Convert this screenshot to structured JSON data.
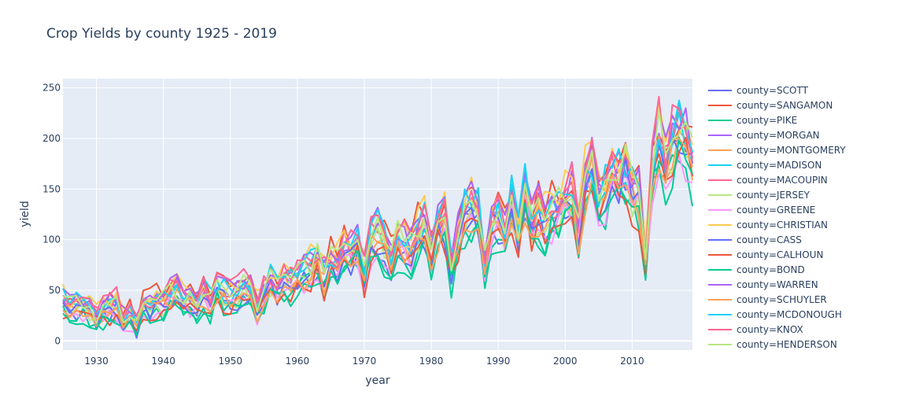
{
  "chart_data": {
    "type": "line",
    "title": "Crop Yields by county 1925 - 2019",
    "xlabel": "year",
    "ylabel": "yield",
    "xlim": [
      1925,
      2019
    ],
    "ylim": [
      -9,
      259
    ],
    "x_ticks": [
      1930,
      1940,
      1950,
      1960,
      1970,
      1980,
      1990,
      2000,
      2010
    ],
    "x_tick_labels": [
      "1930",
      "1940",
      "1950",
      "1960",
      "1970",
      "1980",
      "1990",
      "2000",
      "2010"
    ],
    "y_ticks": [
      0,
      50,
      100,
      150,
      200,
      250
    ],
    "y_tick_labels": [
      "0",
      "50",
      "100",
      "150",
      "200",
      "250"
    ],
    "grid": true,
    "legend_position": "right",
    "plot_bgcolor": "#E5ECF6",
    "x_start": 1925,
    "base_trend": [
      38,
      32,
      34,
      36,
      34,
      22,
      30,
      32,
      36,
      20,
      25,
      14,
      40,
      35,
      40,
      38,
      45,
      48,
      42,
      40,
      38,
      48,
      38,
      52,
      46,
      44,
      46,
      52,
      48,
      32,
      46,
      58,
      52,
      60,
      58,
      62,
      68,
      72,
      80,
      62,
      78,
      74,
      90,
      85,
      95,
      65,
      100,
      105,
      95,
      80,
      100,
      95,
      90,
      110,
      115,
      85,
      112,
      120,
      68,
      105,
      130,
      132,
      125,
      75,
      118,
      120,
      105,
      140,
      100,
      145,
      110,
      125,
      120,
      128,
      130,
      140,
      145,
      110,
      158,
      170,
      140,
      148,
      165,
      160,
      170,
      150,
      145,
      75,
      170,
      200,
      170,
      195,
      205,
      200,
      175
    ],
    "series": [
      {
        "name": "county=SCOTT",
        "color": "#636efa",
        "offset": -4,
        "scale": 0.95,
        "phase": 1
      },
      {
        "name": "county=SANGAMON",
        "color": "#EF553B",
        "offset": 6,
        "scale": 1.08,
        "phase": 2
      },
      {
        "name": "county=PIKE",
        "color": "#00cc96",
        "offset": -8,
        "scale": 0.9,
        "phase": 3
      },
      {
        "name": "county=MORGAN",
        "color": "#ab63fa",
        "offset": 3,
        "scale": 1.04,
        "phase": 4
      },
      {
        "name": "county=MONTGOMERY",
        "color": "#FFA15A",
        "offset": -2,
        "scale": 0.98,
        "phase": 5
      },
      {
        "name": "county=MADISON",
        "color": "#19d3f3",
        "offset": 1,
        "scale": 1.0,
        "phase": 6
      },
      {
        "name": "county=MACOUPIN",
        "color": "#FF6692",
        "offset": 4,
        "scale": 1.02,
        "phase": 7
      },
      {
        "name": "county=JERSEY",
        "color": "#B6E880",
        "offset": -3,
        "scale": 0.96,
        "phase": 8
      },
      {
        "name": "county=GREENE",
        "color": "#FF97FF",
        "offset": -6,
        "scale": 0.93,
        "phase": 9
      },
      {
        "name": "county=CHRISTIAN",
        "color": "#FECB52",
        "offset": 7,
        "scale": 1.06,
        "phase": 10
      },
      {
        "name": "county=CASS",
        "color": "#636efa",
        "offset": -5,
        "scale": 0.97,
        "phase": 11
      },
      {
        "name": "county=CALHOUN",
        "color": "#EF553B",
        "offset": -7,
        "scale": 0.92,
        "phase": 12
      },
      {
        "name": "county=BOND",
        "color": "#00cc96",
        "offset": -9,
        "scale": 0.91,
        "phase": 13
      },
      {
        "name": "county=WARREN",
        "color": "#ab63fa",
        "offset": 5,
        "scale": 1.07,
        "phase": 14
      },
      {
        "name": "county=SCHUYLER",
        "color": "#FFA15A",
        "offset": -4,
        "scale": 0.94,
        "phase": 15
      },
      {
        "name": "county=MCDONOUGH",
        "color": "#19d3f3",
        "offset": 4,
        "scale": 1.05,
        "phase": 16
      },
      {
        "name": "county=KNOX",
        "color": "#FF6692",
        "offset": 6,
        "scale": 1.06,
        "phase": 17
      },
      {
        "name": "county=HENDERSON",
        "color": "#B6E880",
        "offset": 2,
        "scale": 1.03,
        "phase": 18
      }
    ]
  }
}
